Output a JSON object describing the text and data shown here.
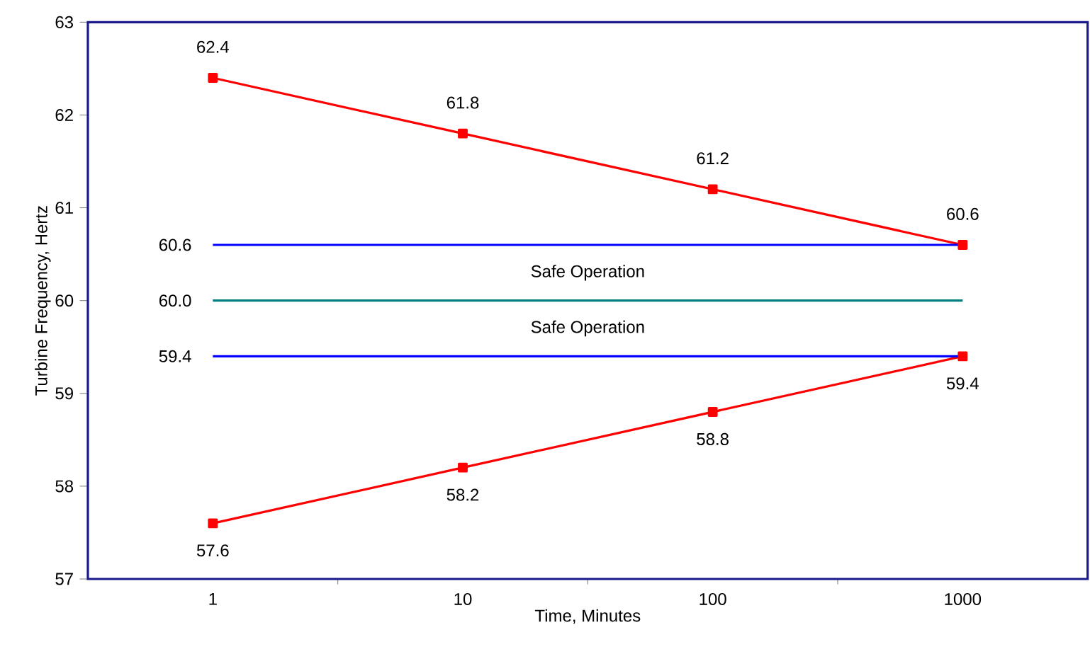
{
  "chart_data": {
    "type": "line",
    "xlabel": "Time, Minutes",
    "ylabel": "Turbine Frequency, Hertz",
    "categories": [
      "1",
      "10",
      "100",
      "1000"
    ],
    "series": [
      {
        "color": "#ff0000",
        "marker": "square",
        "values": [
          62.4,
          61.8,
          61.2,
          60.6
        ],
        "value_labels": [
          "62.4",
          "61.8",
          "61.2",
          "60.6"
        ]
      },
      {
        "color": "#ff0000",
        "marker": "square",
        "values": [
          57.6,
          58.2,
          58.8,
          59.4
        ],
        "value_labels": [
          "57.6",
          "58.2",
          "58.8",
          "59.4"
        ]
      },
      {
        "color": "#0000ff",
        "marker": "none",
        "values": [
          60.6,
          60.6,
          60.6,
          60.6
        ],
        "value_labels": [
          "60.6",
          null,
          null,
          null
        ]
      },
      {
        "color": "#008080",
        "marker": "none",
        "values": [
          60.0,
          60.0,
          60.0,
          60.0
        ],
        "value_labels": [
          "60.0",
          null,
          null,
          null
        ]
      },
      {
        "color": "#0000ff",
        "marker": "none",
        "values": [
          59.4,
          59.4,
          59.4,
          59.4
        ],
        "value_labels": [
          "59.4",
          null,
          null,
          null
        ]
      }
    ],
    "annotations": [
      "Safe Operation",
      "Safe Operation"
    ],
    "ylim": [
      57,
      63
    ],
    "yticks": [
      57,
      58,
      59,
      60,
      61,
      62,
      63
    ]
  }
}
